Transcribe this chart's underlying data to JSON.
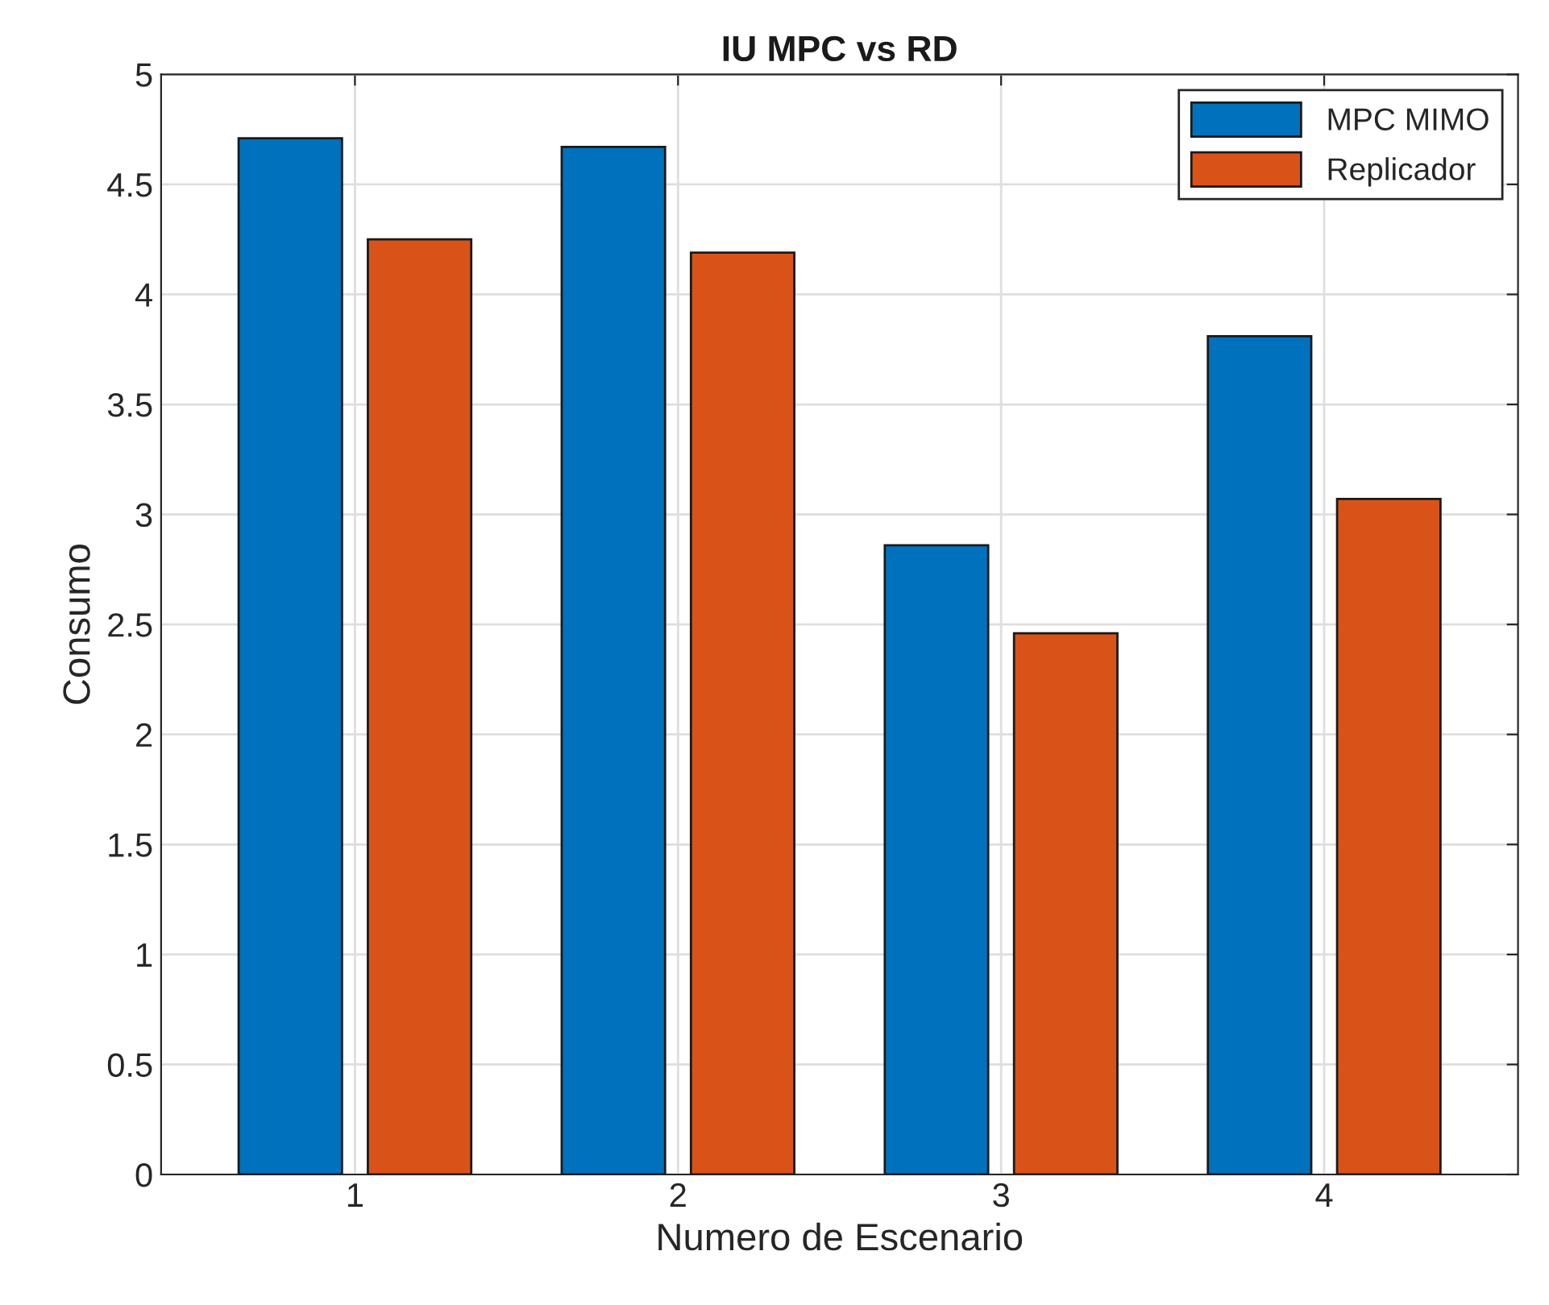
{
  "chart_data": {
    "type": "bar",
    "title": "IU MPC vs RD",
    "xlabel": "Numero de Escenario",
    "ylabel": "Consumo",
    "categories": [
      "1",
      "2",
      "3",
      "4"
    ],
    "series": [
      {
        "name": "MPC MIMO",
        "color": "#0072bd",
        "values": [
          4.71,
          4.67,
          2.86,
          3.81
        ]
      },
      {
        "name": "Replicador",
        "color": "#d95319",
        "values": [
          4.25,
          4.19,
          2.46,
          3.07
        ]
      }
    ],
    "ylim": [
      0,
      5
    ],
    "yticks": [
      0,
      0.5,
      1,
      1.5,
      2,
      2.5,
      3,
      3.5,
      4,
      4.5,
      5
    ],
    "grid": true,
    "legend": "top right"
  }
}
